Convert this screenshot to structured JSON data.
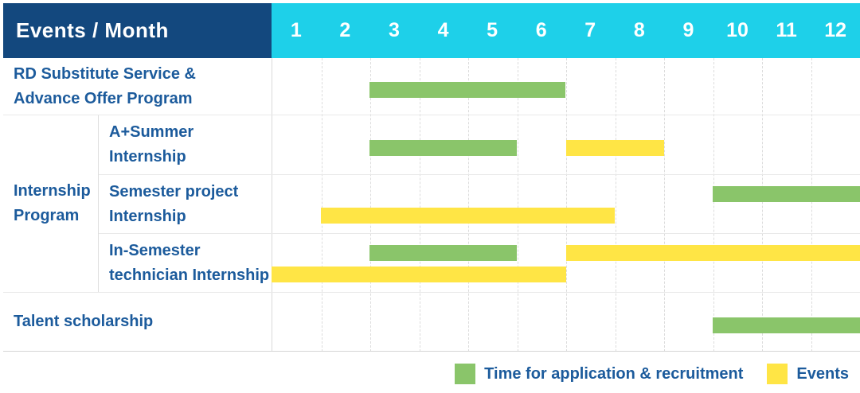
{
  "header": {
    "title": "Events / Month",
    "months": [
      "1",
      "2",
      "3",
      "4",
      "5",
      "6",
      "7",
      "8",
      "9",
      "10",
      "11",
      "12"
    ]
  },
  "colors": {
    "navy": "#13487E",
    "cyan": "#1ED0E9",
    "green": "#8AC56A",
    "yellow": "#FFE545",
    "label_blue": "#1C5B9C"
  },
  "legend": {
    "items": [
      {
        "label": "Time for application & recruitment",
        "color": "#8AC56A"
      },
      {
        "label": "Events",
        "color": "#FFE545"
      }
    ]
  },
  "chart_data": {
    "type": "table",
    "subtype": "gantt-schedule",
    "title": "Events / Month",
    "x_axis": {
      "label": "Month",
      "ticks": [
        1,
        2,
        3,
        4,
        5,
        6,
        7,
        8,
        9,
        10,
        11,
        12
      ],
      "range": [
        1,
        12
      ]
    },
    "grid": "dashed-vertical-month-lines",
    "legend_position": "bottom-right",
    "series_meaning": {
      "green": "Time for application & recruitment",
      "yellow": "Events"
    },
    "groups": [
      {
        "group_label": null,
        "rows": [
          {
            "label": "RD Substitute Service & Advance Offer Program",
            "label_lines": [
              "RD Substitute Service &",
              "Advance Offer Program"
            ],
            "bars": [
              {
                "series": "Time for application & recruitment",
                "color": "green",
                "start_month": 3,
                "end_month": 6,
                "line": 0
              }
            ]
          }
        ]
      },
      {
        "group_label": "Internship Program",
        "group_label_lines": [
          "Internship",
          "Program"
        ],
        "rows": [
          {
            "label": "A+Summer Internship",
            "label_lines": [
              "A+Summer",
              "Internship"
            ],
            "bars": [
              {
                "series": "Time for application & recruitment",
                "color": "green",
                "start_month": 3,
                "end_month": 5,
                "line": 0
              },
              {
                "series": "Events",
                "color": "yellow",
                "start_month": 7,
                "end_month": 8,
                "line": 0
              }
            ]
          },
          {
            "label": "Semester project Internship",
            "label_lines": [
              "Semester project",
              "Internship"
            ],
            "bars": [
              {
                "series": "Time for application & recruitment",
                "color": "green",
                "start_month": 10,
                "end_month": 12,
                "line": 0
              },
              {
                "series": "Events",
                "color": "yellow",
                "start_month": 2,
                "end_month": 7,
                "line": 1
              }
            ]
          },
          {
            "label": "In-Semester technician Internship",
            "label_lines": [
              "In-Semester",
              "technician Internship"
            ],
            "bars": [
              {
                "series": "Time for application & recruitment",
                "color": "green",
                "start_month": 3,
                "end_month": 5,
                "line": 0
              },
              {
                "series": "Events",
                "color": "yellow",
                "start_month": 7,
                "end_month": 12,
                "line": 0
              },
              {
                "series": "Events",
                "color": "yellow",
                "start_month": 1,
                "end_month": 6,
                "line": 1
              }
            ]
          }
        ]
      },
      {
        "group_label": null,
        "rows": [
          {
            "label": "Talent scholarship",
            "label_lines": [
              "Talent scholarship"
            ],
            "bars": [
              {
                "series": "Time for application & recruitment",
                "color": "green",
                "start_month": 10,
                "end_month": 12,
                "line": 0
              }
            ]
          }
        ]
      }
    ]
  }
}
